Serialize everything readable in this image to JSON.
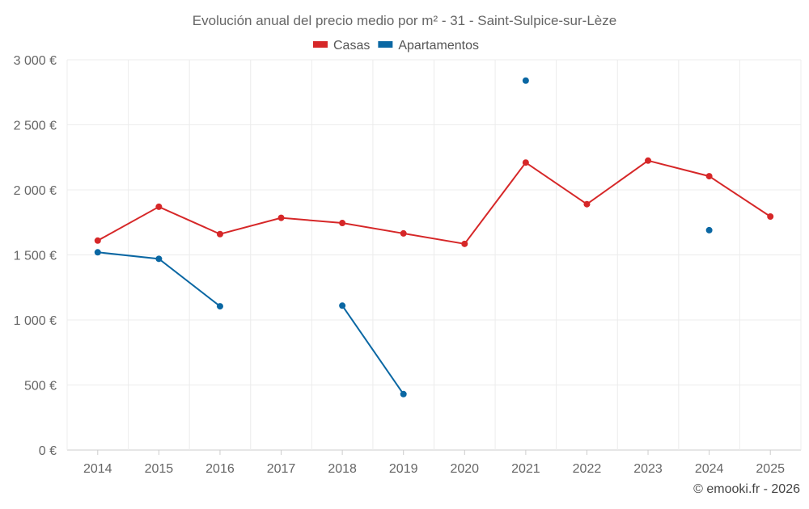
{
  "chart_data": {
    "type": "line",
    "title": "Evolución anual del precio medio por m² - 31 - Saint-Sulpice-sur-Lèze",
    "xlabel": "",
    "ylabel": "",
    "categories": [
      "2014",
      "2015",
      "2016",
      "2017",
      "2018",
      "2019",
      "2020",
      "2021",
      "2022",
      "2023",
      "2024",
      "2025"
    ],
    "ylim": [
      0,
      3000
    ],
    "yticks": [
      0,
      500,
      1000,
      1500,
      2000,
      2500,
      3000
    ],
    "ytick_labels": [
      "0 €",
      "500 €",
      "1 000 €",
      "1 500 €",
      "2 000 €",
      "2 500 €",
      "3 000 €"
    ],
    "grid": true,
    "legend_position": "top-center",
    "series": [
      {
        "name": "Casas",
        "color": "#d62728",
        "values": [
          1610,
          1870,
          1660,
          1785,
          1745,
          1665,
          1585,
          2210,
          1890,
          2225,
          2105,
          1795
        ]
      },
      {
        "name": "Apartamentos",
        "color": "#0a67a3",
        "values": [
          1520,
          1470,
          1105,
          null,
          1110,
          430,
          null,
          2840,
          null,
          null,
          1690,
          null
        ]
      }
    ]
  },
  "footer": {
    "credit": "© emooki.fr - 2026"
  }
}
